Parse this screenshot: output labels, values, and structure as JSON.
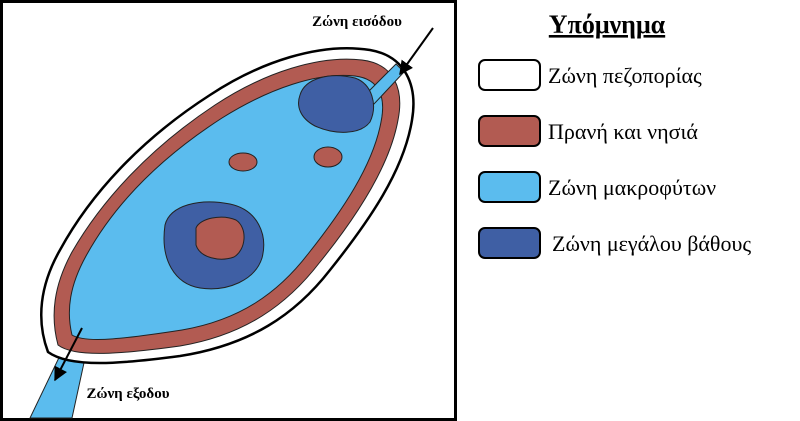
{
  "map": {
    "inlet_label": "Ζώνη εισόδου",
    "outlet_label": "Ζώνη εξοδου"
  },
  "legend": {
    "title": "Υπόμνημα",
    "items": [
      {
        "label": "Ζώνη πεζοπορίας",
        "color": "#ffffff"
      },
      {
        "label": "Πρανή και νησιά",
        "color": "#b25b52"
      },
      {
        "label": "Ζώνη μακροφύτων",
        "color": "#5bbcee"
      },
      {
        "label": "Ζώνη μεγάλου βάθους",
        "color": "#3f5fa4"
      }
    ]
  }
}
